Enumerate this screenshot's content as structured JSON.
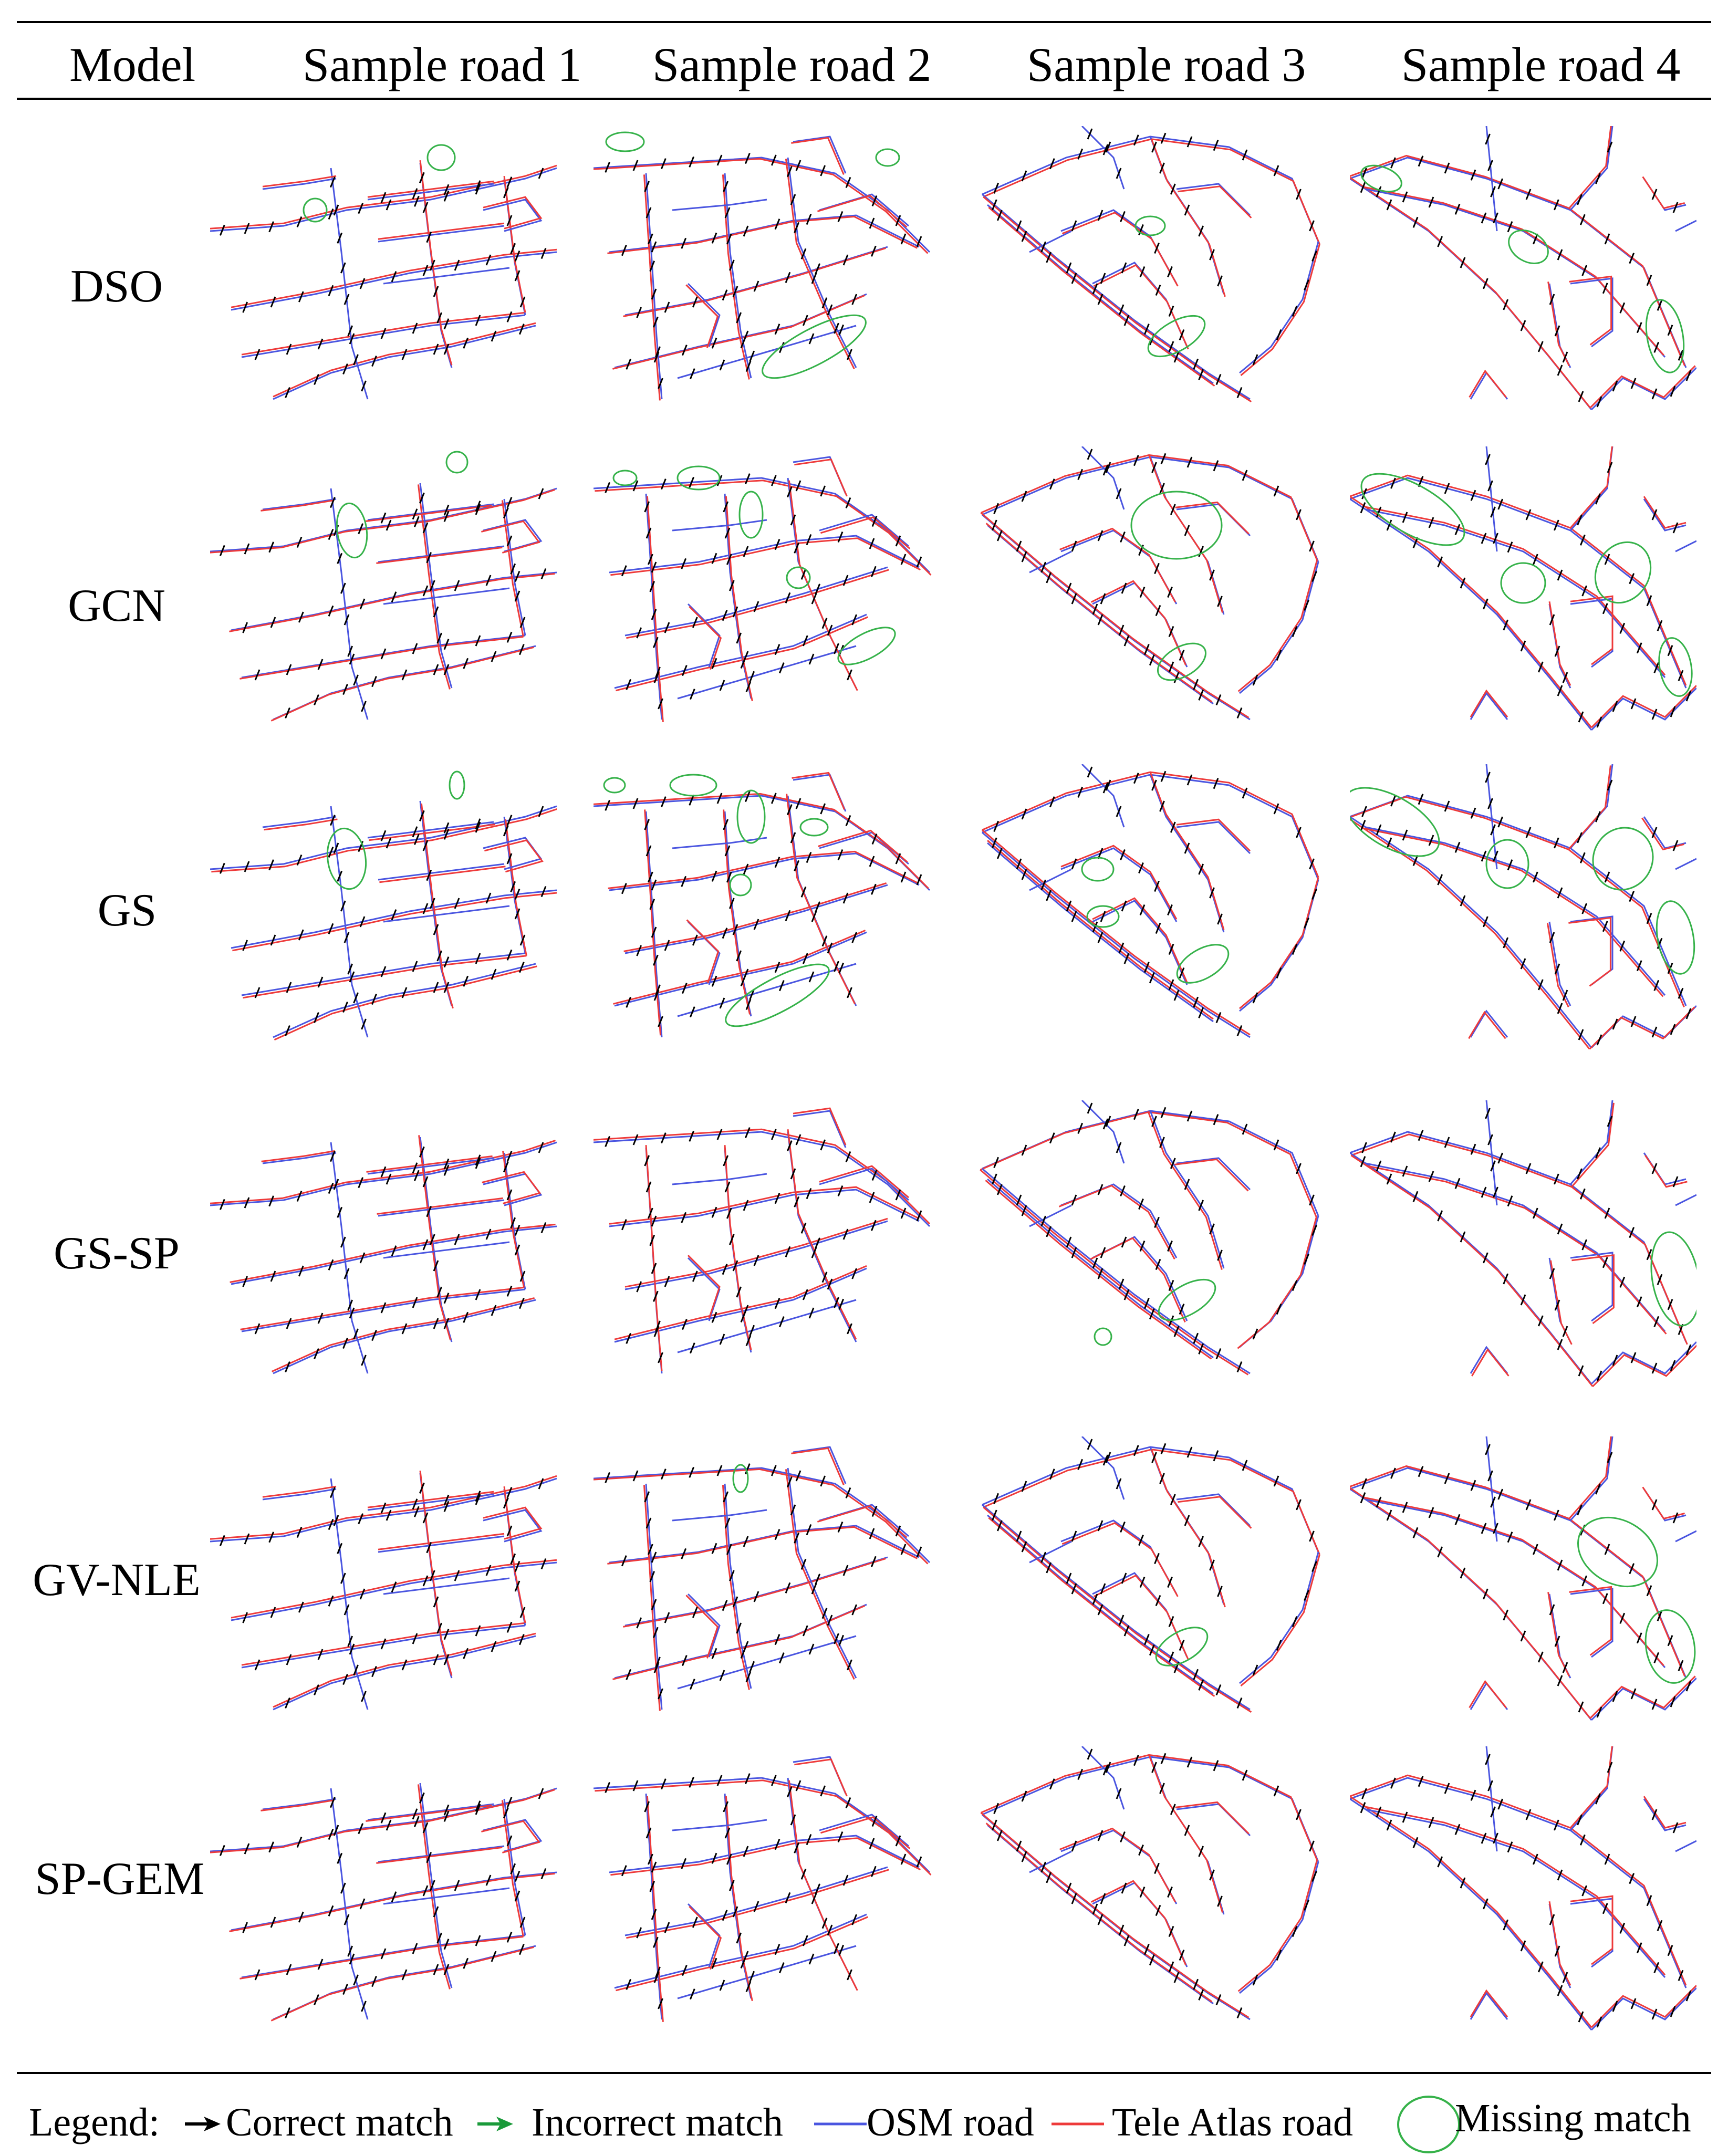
{
  "header": {
    "model": "Model",
    "samples": [
      "Sample road 1",
      "Sample road 2",
      "Sample road 3",
      "Sample road 4"
    ]
  },
  "rows": [
    {
      "model": "DSO"
    },
    {
      "model": "GCN"
    },
    {
      "model": "GS"
    },
    {
      "model": "GS-SP"
    },
    {
      "model": "GV-NLE"
    },
    {
      "model": "SP-GEM"
    }
  ],
  "legend": {
    "title": "Legend:",
    "correct": "Correct match",
    "incorrect": "Incorrect match",
    "osm": "OSM road",
    "teleatlas": "Tele Atlas road",
    "missing": "Missing match"
  },
  "colors": {
    "osm": "#4a55e0",
    "teleatlas": "#ee3a3a",
    "correct": "#000000",
    "incorrect": "#1a9a3a",
    "missing": "#36b24a"
  }
}
